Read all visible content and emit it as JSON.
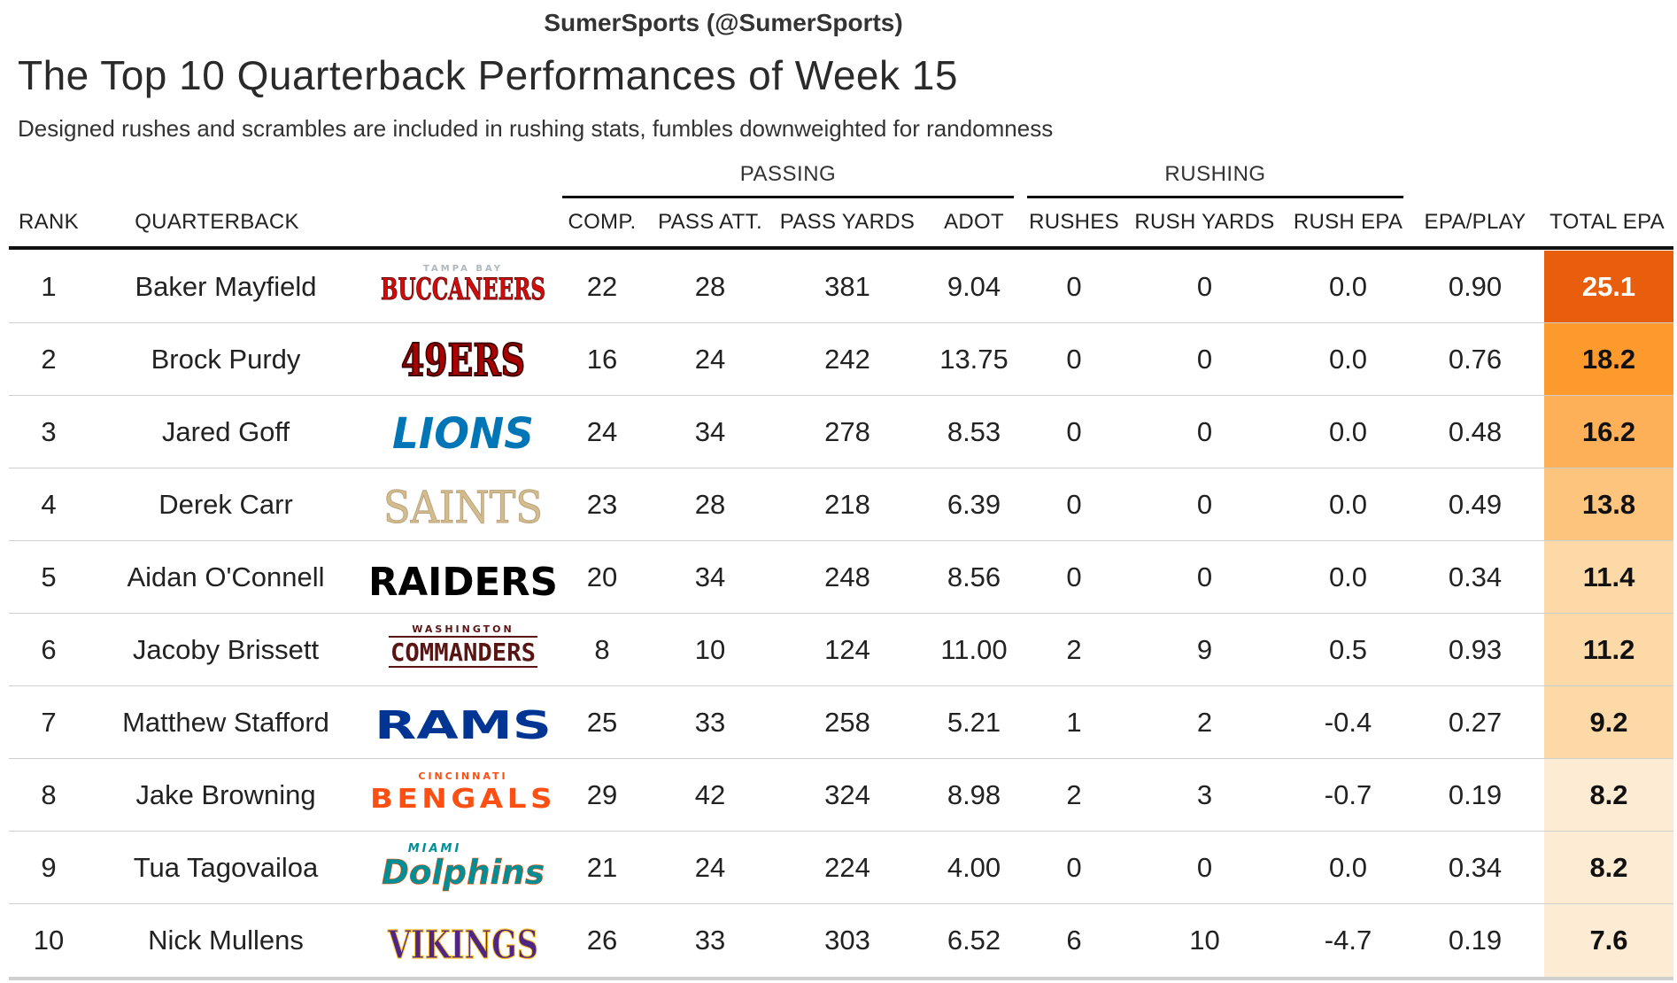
{
  "credit": "SumerSports (@SumerSports)",
  "title": "The Top 10 Quarterback Performances of Week 15",
  "subtitle": "Designed rushes and scrambles are included in rushing stats, fumbles downweighted for randomness",
  "groups": {
    "passing": "PASSING",
    "rushing": "RUSHING"
  },
  "columns": {
    "rank": "RANK",
    "quarterback": "QUARTERBACK",
    "comp": "COMP.",
    "pass_att": "PASS ATT.",
    "pass_yards": "PASS YARDS",
    "adot": "ADOT",
    "rushes": "RUSHES",
    "rush_yards": "RUSH YARDS",
    "rush_epa": "RUSH EPA",
    "epa_play": "EPA/PLAY",
    "total_epa": "TOTAL EPA"
  },
  "colors": {
    "epa_scale": [
      "#fdebd3",
      "#fdd9a8",
      "#fdc47d",
      "#fdb057",
      "#fc9a2e",
      "#f98c0e",
      "#e85e0c"
    ]
  },
  "chart_data": {
    "type": "table",
    "title": "The Top 10 Quarterback Performances of Week 15",
    "rows": [
      {
        "rank": "1",
        "quarterback": "Baker Mayfield",
        "team_logo": {
          "text": "BUCCANEERS",
          "sub": "TAMPA BAY",
          "color": "#d50a0a",
          "sub_color": "#b0b7bc",
          "style": "buccaneers"
        },
        "comp": "22",
        "pass_att": "28",
        "pass_yards": "381",
        "adot": "9.04",
        "rushes": "0",
        "rush_yards": "0",
        "rush_epa": "0.0",
        "epa_play": "0.90",
        "total_epa": "25.1",
        "total_epa_value": 25.1
      },
      {
        "rank": "2",
        "quarterback": "Brock Purdy",
        "team_logo": {
          "text": "49ERS",
          "sub": "",
          "color": "#aa0000",
          "sub_color": "",
          "style": "niners"
        },
        "comp": "16",
        "pass_att": "24",
        "pass_yards": "242",
        "adot": "13.75",
        "rushes": "0",
        "rush_yards": "0",
        "rush_epa": "0.0",
        "epa_play": "0.76",
        "total_epa": "18.2",
        "total_epa_value": 18.2
      },
      {
        "rank": "3",
        "quarterback": "Jared Goff",
        "team_logo": {
          "text": "LIONS",
          "sub": "",
          "color": "#0076b6",
          "sub_color": "",
          "style": "lions"
        },
        "comp": "24",
        "pass_att": "34",
        "pass_yards": "278",
        "adot": "8.53",
        "rushes": "0",
        "rush_yards": "0",
        "rush_epa": "0.0",
        "epa_play": "0.48",
        "total_epa": "16.2",
        "total_epa_value": 16.2
      },
      {
        "rank": "4",
        "quarterback": "Derek Carr",
        "team_logo": {
          "text": "SAINTS",
          "sub": "",
          "color": "#d3bc8d",
          "sub_color": "",
          "style": "saints"
        },
        "comp": "23",
        "pass_att": "28",
        "pass_yards": "218",
        "adot": "6.39",
        "rushes": "0",
        "rush_yards": "0",
        "rush_epa": "0.0",
        "epa_play": "0.49",
        "total_epa": "13.8",
        "total_epa_value": 13.8
      },
      {
        "rank": "5",
        "quarterback": "Aidan O'Connell",
        "team_logo": {
          "text": "RAIDERS",
          "sub": "",
          "color": "#000000",
          "sub_color": "",
          "style": "raiders"
        },
        "comp": "20",
        "pass_att": "34",
        "pass_yards": "248",
        "adot": "8.56",
        "rushes": "0",
        "rush_yards": "0",
        "rush_epa": "0.0",
        "epa_play": "0.34",
        "total_epa": "11.4",
        "total_epa_value": 11.4
      },
      {
        "rank": "6",
        "quarterback": "Jacoby Brissett",
        "team_logo": {
          "text": "COMMANDERS",
          "sub": "WASHINGTON",
          "color": "#5a1414",
          "sub_color": "#5a1414",
          "style": "commanders"
        },
        "comp": "8",
        "pass_att": "10",
        "pass_yards": "124",
        "adot": "11.00",
        "rushes": "2",
        "rush_yards": "9",
        "rush_epa": "0.5",
        "epa_play": "0.93",
        "total_epa": "11.2",
        "total_epa_value": 11.2
      },
      {
        "rank": "7",
        "quarterback": "Matthew Stafford",
        "team_logo": {
          "text": "RAMS",
          "sub": "",
          "color": "#003594",
          "sub_color": "",
          "style": "rams"
        },
        "comp": "25",
        "pass_att": "33",
        "pass_yards": "258",
        "adot": "5.21",
        "rushes": "1",
        "rush_yards": "2",
        "rush_epa": "-0.4",
        "epa_play": "0.27",
        "total_epa": "9.2",
        "total_epa_value": 9.2
      },
      {
        "rank": "8",
        "quarterback": "Jake Browning",
        "team_logo": {
          "text": "BENGALS",
          "sub": "CINCINNATI",
          "color": "#fb4f14",
          "sub_color": "#fb4f14",
          "style": "bengals"
        },
        "comp": "29",
        "pass_att": "42",
        "pass_yards": "324",
        "adot": "8.98",
        "rushes": "2",
        "rush_yards": "3",
        "rush_epa": "-0.7",
        "epa_play": "0.19",
        "total_epa": "8.2",
        "total_epa_value": 8.2
      },
      {
        "rank": "9",
        "quarterback": "Tua Tagovailoa",
        "team_logo": {
          "text": "Dolphins",
          "sub": "MIAMI",
          "color": "#008e97",
          "sub_color": "#008e97",
          "style": "dolphins"
        },
        "comp": "21",
        "pass_att": "24",
        "pass_yards": "224",
        "adot": "4.00",
        "rushes": "0",
        "rush_yards": "0",
        "rush_epa": "0.0",
        "epa_play": "0.34",
        "total_epa": "8.2",
        "total_epa_value": 8.2
      },
      {
        "rank": "10",
        "quarterback": "Nick Mullens",
        "team_logo": {
          "text": "VIKINGS",
          "sub": "",
          "color": "#4f2683",
          "sub_color": "",
          "style": "vikings"
        },
        "comp": "26",
        "pass_att": "33",
        "pass_yards": "303",
        "adot": "6.52",
        "rushes": "6",
        "rush_yards": "10",
        "rush_epa": "-4.7",
        "epa_play": "0.19",
        "total_epa": "7.6",
        "total_epa_value": 7.6
      }
    ]
  }
}
